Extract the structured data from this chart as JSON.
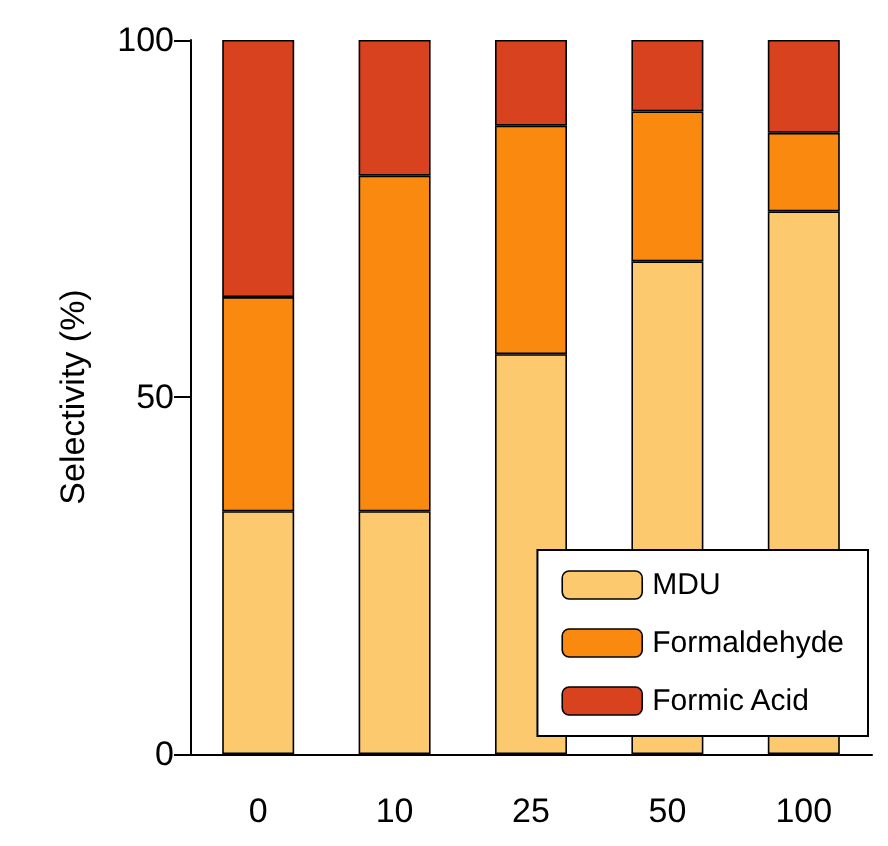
{
  "chart_data": {
    "type": "bar",
    "stacked": true,
    "ylabel": "Selectivity (%)",
    "categories": [
      "0",
      "10",
      "25",
      "50",
      "100"
    ],
    "series": [
      {
        "name": "MDU",
        "color": "#fcc96e",
        "values": [
          34,
          34,
          56,
          69,
          76
        ]
      },
      {
        "name": "Formaldehyde",
        "color": "#f98a0f",
        "values": [
          30,
          47,
          32,
          21,
          11
        ]
      },
      {
        "name": "Formic Acid",
        "color": "#d9421e",
        "values": [
          36,
          19,
          12,
          10,
          13
        ]
      }
    ],
    "ylim": [
      0,
      100
    ],
    "yticks": [
      0,
      50,
      100
    ],
    "legend": "bottom right",
    "grid": false
  }
}
